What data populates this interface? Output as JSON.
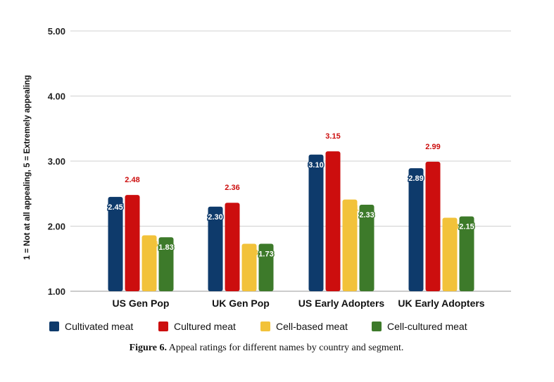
{
  "chart_data": {
    "type": "bar",
    "categories": [
      "US Gen Pop",
      "UK Gen Pop",
      "US Early Adopters",
      "UK Early Adopters"
    ],
    "series": [
      {
        "name": "Cultivated meat",
        "color": "#0e3a6b",
        "values": [
          2.45,
          2.3,
          3.1,
          2.89
        ],
        "labels": [
          "2.45",
          "2.30",
          "3.10",
          "2.89"
        ]
      },
      {
        "name": "Cultured meat",
        "color": "#cc0e0e",
        "values": [
          2.48,
          2.36,
          3.15,
          2.99
        ],
        "labels": [
          "2.48",
          "2.36",
          "3.15",
          "2.99"
        ]
      },
      {
        "name": "Cell-based meat",
        "color": "#f2c23a",
        "values": [
          1.86,
          1.73,
          2.41,
          2.13
        ],
        "labels": [
          "1.86",
          "1.73",
          "2.41",
          "2.13"
        ]
      },
      {
        "name": "Cell-cultured meat",
        "color": "#3d7a2a",
        "values": [
          1.83,
          1.73,
          2.33,
          2.15
        ],
        "labels": [
          "1.83",
          "1.73",
          "2.33",
          "2.15"
        ]
      }
    ],
    "ylabel": "1 = Not at all appealing, 5 = Extremely appealing",
    "ylim": [
      1,
      5
    ],
    "yticks": [
      "1.00",
      "2.00",
      "3.00",
      "4.00",
      "5.00"
    ],
    "grid": true,
    "legend_position": "bottom"
  },
  "caption": {
    "label": "Figure 6.",
    "text": " Appeal ratings for different names by country and segment."
  }
}
